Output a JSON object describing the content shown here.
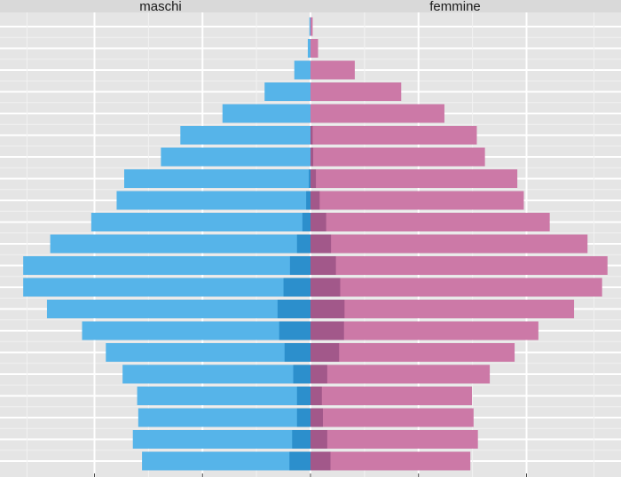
{
  "chart_data": {
    "type": "bar",
    "orientation": "horizontal",
    "style": "population-pyramid",
    "facets": [
      "maschi",
      "femmine"
    ],
    "x_ticks": [
      -4,
      -2,
      0,
      2,
      4
    ],
    "x_tick_labels_visible": false,
    "xlim": [
      -5.75,
      5.75
    ],
    "grid": true,
    "legend": "none",
    "bands": 21,
    "series": [
      {
        "facet": "maschi",
        "color": "#56b4e9",
        "values": [
          0.02,
          0.05,
          0.3,
          0.85,
          1.63,
          2.41,
          2.77,
          3.45,
          3.59,
          4.06,
          4.82,
          5.32,
          5.32,
          4.88,
          4.23,
          3.79,
          3.48,
          3.21,
          3.19,
          3.29,
          3.12
        ]
      },
      {
        "facet": "maschi",
        "color": "#2c8fcc",
        "values": [
          0,
          0,
          0,
          0,
          0,
          0,
          0,
          0.03,
          0.08,
          0.15,
          0.25,
          0.38,
          0.5,
          0.61,
          0.58,
          0.48,
          0.32,
          0.25,
          0.25,
          0.34,
          0.39
        ]
      },
      {
        "facet": "femmine",
        "color": "#cc79a7",
        "values": [
          0.04,
          0.14,
          0.82,
          1.68,
          2.48,
          3.08,
          3.23,
          3.83,
          3.95,
          4.43,
          5.13,
          5.5,
          5.4,
          4.88,
          4.22,
          3.78,
          3.32,
          2.99,
          3.02,
          3.1,
          2.96
        ]
      },
      {
        "facet": "femmine",
        "color": "#a2588a",
        "values": [
          0,
          0,
          0,
          0,
          0,
          0.04,
          0.05,
          0.1,
          0.17,
          0.29,
          0.38,
          0.47,
          0.55,
          0.63,
          0.62,
          0.53,
          0.31,
          0.21,
          0.23,
          0.31,
          0.37
        ]
      }
    ]
  }
}
